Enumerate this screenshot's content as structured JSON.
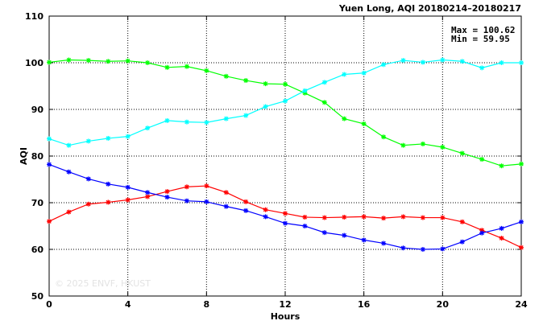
{
  "chart_data": {
    "type": "line",
    "title": "Yuen Long, AQI 20180214–20180217",
    "xlabel": "Hours",
    "ylabel": "AQI",
    "xlim": [
      0,
      24
    ],
    "ylim": [
      50,
      110
    ],
    "xticks": [
      "0",
      "4",
      "8",
      "12",
      "16",
      "20",
      "24"
    ],
    "yticks": [
      "50",
      "60",
      "70",
      "80",
      "90",
      "100",
      "110"
    ],
    "grid": true,
    "stats": {
      "max": "Max = 100.62",
      "min": "Min =  59.95"
    },
    "watermark": "© 2025  ENVF, HKUST",
    "x": [
      0,
      1,
      2,
      3,
      4,
      5,
      6,
      7,
      8,
      9,
      10,
      11,
      12,
      13,
      14,
      15,
      16,
      17,
      18,
      19,
      20,
      21,
      22,
      23,
      24
    ],
    "series": [
      {
        "color": "#00ff00",
        "values": [
          100.1,
          100.6,
          100.5,
          100.3,
          100.4,
          100.0,
          99.0,
          99.2,
          98.3,
          97.1,
          96.2,
          95.5,
          95.4,
          93.5,
          91.5,
          88.0,
          86.9,
          84.1,
          82.3,
          82.6,
          81.9,
          80.6,
          79.3,
          77.9,
          78.3
        ]
      },
      {
        "color": "#00ffff",
        "values": [
          83.7,
          82.3,
          83.2,
          83.8,
          84.2,
          86.0,
          87.6,
          87.3,
          87.2,
          88.0,
          88.7,
          90.6,
          91.8,
          94.0,
          95.8,
          97.5,
          97.8,
          99.6,
          100.5,
          100.1,
          100.6,
          100.3,
          98.9,
          100.0,
          100.0
        ]
      },
      {
        "color": "#ff0000",
        "values": [
          66.0,
          68.0,
          69.7,
          70.1,
          70.6,
          71.3,
          72.4,
          73.4,
          73.6,
          72.2,
          70.2,
          68.5,
          67.7,
          66.9,
          66.8,
          66.9,
          67.0,
          66.7,
          67.0,
          66.8,
          66.8,
          65.9,
          64.1,
          62.4,
          60.4
        ]
      },
      {
        "color": "#0000ff",
        "values": [
          78.2,
          76.6,
          75.1,
          74.0,
          73.3,
          72.2,
          71.2,
          70.4,
          70.2,
          69.2,
          68.3,
          67.0,
          65.6,
          65.0,
          63.6,
          63.0,
          62.0,
          61.3,
          60.3,
          60.0,
          60.1,
          61.6,
          63.5,
          64.5,
          65.9
        ]
      }
    ]
  }
}
